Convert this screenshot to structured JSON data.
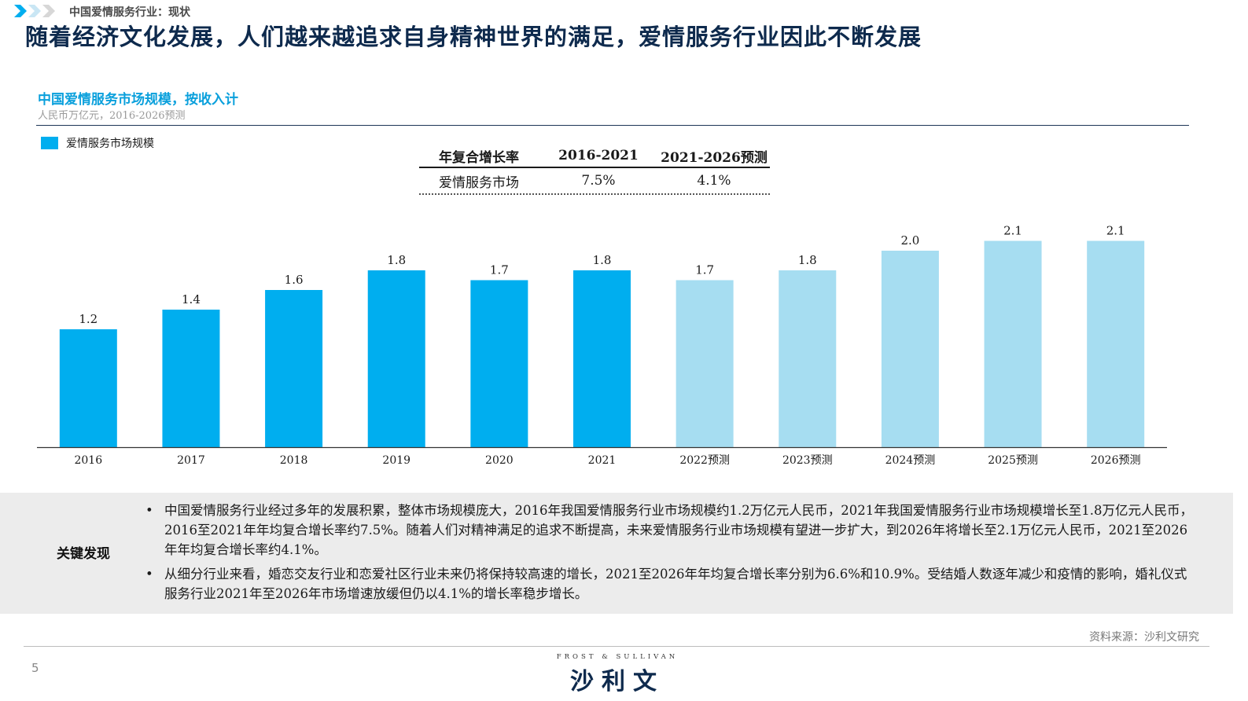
{
  "header": {
    "breadcrumb": "中国爱情服务行业：现状",
    "title": "随着经济文化发展，人们越来越追求自身精神世界的满足，爱情服务行业因此不断发展"
  },
  "chart_data": {
    "type": "bar",
    "title": "中国爱情服务市场规模，按收入计",
    "subtitle": "人民币万亿元，2016-2026预测",
    "legend": [
      "爱情服务市场规模"
    ],
    "legend_position": "top-left",
    "categories": [
      "2016",
      "2017",
      "2018",
      "2019",
      "2020",
      "2021",
      "2022预测",
      "2023预测",
      "2024预测",
      "2025预测",
      "2026预测"
    ],
    "values": [
      1.2,
      1.4,
      1.6,
      1.8,
      1.7,
      1.8,
      1.7,
      1.8,
      2.0,
      2.1,
      2.1
    ],
    "labels": [
      "1.2",
      "1.4",
      "1.6",
      "1.8",
      "1.7",
      "1.8",
      "1.7",
      "1.8",
      "2.0",
      "2.1",
      "2.1"
    ],
    "forecast_from_index": 6,
    "ylim": [
      0,
      2.4
    ],
    "grid": false,
    "colors": {
      "actual": "#00AEEF",
      "forecast": "#A6DDF1"
    }
  },
  "cagr_table": {
    "headers": [
      "年复合增长率",
      "2016-2021",
      "2021-2026预测"
    ],
    "row": [
      "爱情服务市场",
      "7.5%",
      "4.1%"
    ]
  },
  "findings": {
    "label": "关键发现",
    "items": [
      "中国爱情服务行业经过多年的发展积累，整体市场规模庞大，2016年我国爱情服务行业市场规模约1.2万亿元人民币，2021年我国爱情服务行业市场规模增长至1.8万亿元人民币，2016至2021年年均复合增长率约7.5%。随着人们对精神满足的追求不断提高，未来爱情服务行业市场规模有望进一步扩大，到2026年将增长至2.1万亿元人民币，2021至2026年年均复合增长率约4.1%。",
      "从细分行业来看，婚恋交友行业和恋爱社区行业未来仍将保持较高速的增长，2021至2026年年均复合增长率分别为6.6%和10.9%。受结婚人数逐年减少和疫情的影响，婚礼仪式服务行业2021年至2026年市场增速放缓但仍以4.1%的增长率稳步增长。"
    ]
  },
  "footer": {
    "source": "资料来源：沙利文研究",
    "page_number": "5",
    "logo_en": "FROST & SULLIVAN",
    "logo_cn": "沙利文"
  }
}
